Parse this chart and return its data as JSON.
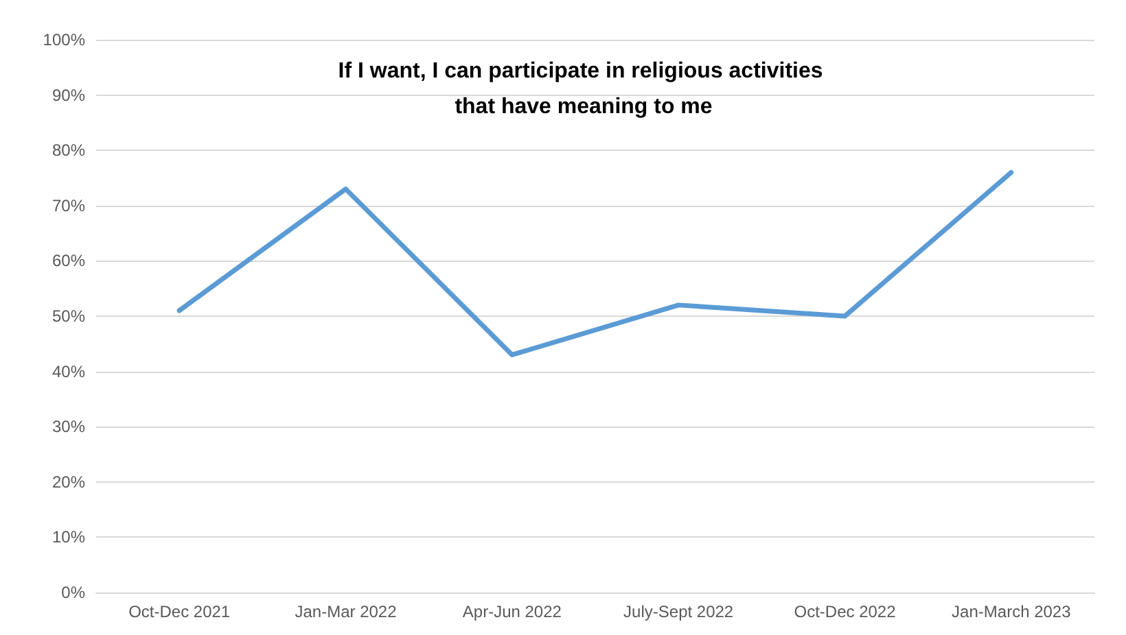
{
  "chart_data": {
    "type": "line",
    "title": "If I want, I can participate in religious activities that have meaning to me",
    "categories": [
      "Oct-Dec 2021",
      "Jan-Mar 2022",
      "Apr-Jun 2022",
      "July-Sept 2022",
      "Oct-Dec 2022",
      "Jan-March 2023"
    ],
    "series": [
      {
        "color": "#5b9bd5",
        "values": [
          51,
          73,
          43,
          52,
          50,
          76
        ]
      }
    ],
    "ylim": [
      0,
      100
    ],
    "yticks": [
      {
        "value": 0,
        "label": "0%"
      },
      {
        "value": 10,
        "label": "10%"
      },
      {
        "value": 20,
        "label": "20%"
      },
      {
        "value": 30,
        "label": "30%"
      },
      {
        "value": 40,
        "label": "40%"
      },
      {
        "value": 50,
        "label": "50%"
      },
      {
        "value": 60,
        "label": "60%"
      },
      {
        "value": 70,
        "label": "70%"
      },
      {
        "value": 80,
        "label": "80%"
      },
      {
        "value": 90,
        "label": "90%"
      },
      {
        "value": 100,
        "label": "100%"
      }
    ],
    "grid": "y",
    "marker": "none",
    "line_style": "solid"
  }
}
